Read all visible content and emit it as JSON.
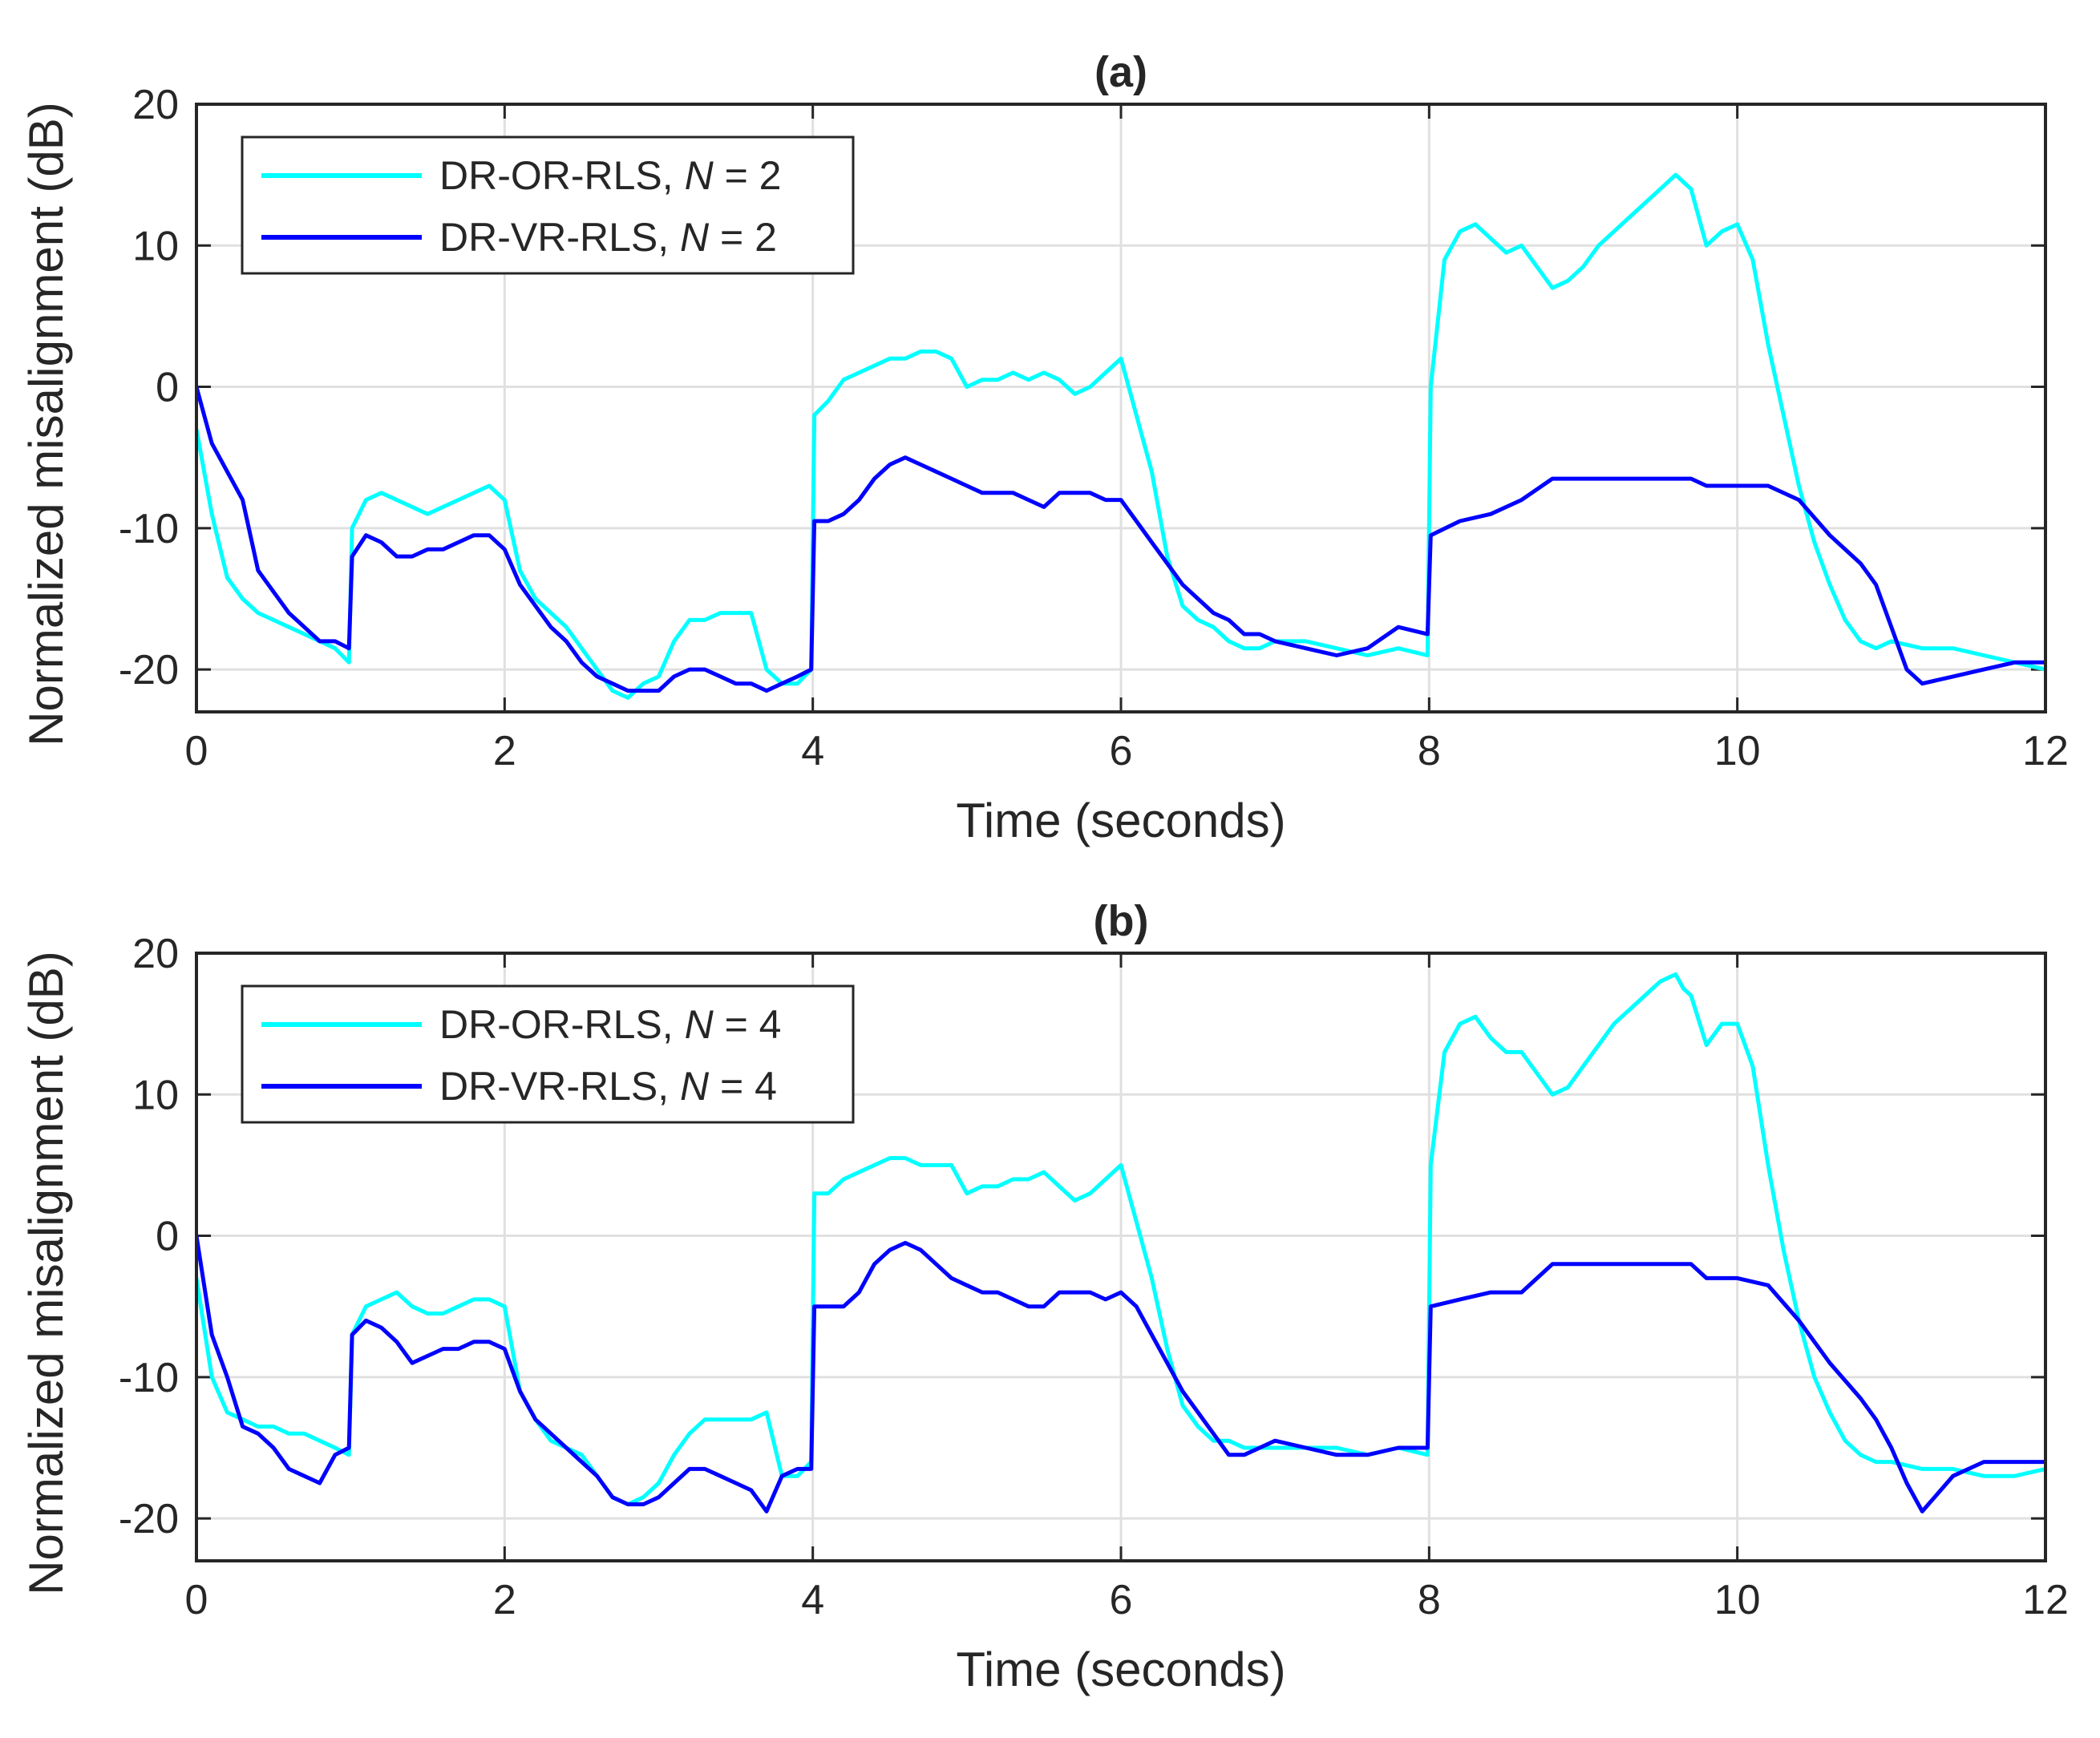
{
  "chart_data": [
    {
      "type": "line",
      "title": "(a)",
      "xlabel": "Time (seconds)",
      "ylabel": "Normalized misalignment (dB)",
      "xlim": [
        0,
        12
      ],
      "ylim": [
        -23,
        20
      ],
      "xticks": [
        "0",
        "2",
        "4",
        "6",
        "8",
        "10",
        "12"
      ],
      "yticks": [
        "-20",
        "-10",
        "0",
        "10",
        "20"
      ],
      "grid": true,
      "legend_position": "top-left",
      "series": [
        {
          "name": "DR-OR-RLS",
          "N_label": "N",
          "N_value": "= 2",
          "color": "#00ffff",
          "x": [
            0,
            0.1,
            0.2,
            0.3,
            0.4,
            0.5,
            0.6,
            0.7,
            0.8,
            0.9,
            0.99,
            1.01,
            1.1,
            1.2,
            1.3,
            1.4,
            1.5,
            1.6,
            1.7,
            1.8,
            1.9,
            2.0,
            2.1,
            2.2,
            2.3,
            2.4,
            2.5,
            2.6,
            2.7,
            2.8,
            2.9,
            3.0,
            3.1,
            3.2,
            3.3,
            3.4,
            3.5,
            3.6,
            3.7,
            3.8,
            3.9,
            3.99,
            4.01,
            4.1,
            4.2,
            4.3,
            4.4,
            4.5,
            4.6,
            4.7,
            4.8,
            4.9,
            5.0,
            5.1,
            5.2,
            5.3,
            5.4,
            5.5,
            5.6,
            5.7,
            5.8,
            5.9,
            6.0,
            6.1,
            6.2,
            6.3,
            6.4,
            6.5,
            6.6,
            6.7,
            6.8,
            6.9,
            7.0,
            7.2,
            7.4,
            7.6,
            7.8,
            7.99,
            8.01,
            8.1,
            8.2,
            8.3,
            8.4,
            8.5,
            8.6,
            8.7,
            8.8,
            8.9,
            9.0,
            9.1,
            9.2,
            9.3,
            9.4,
            9.5,
            9.6,
            9.65,
            9.7,
            9.8,
            9.9,
            10.0,
            10.1,
            10.2,
            10.3,
            10.4,
            10.5,
            10.6,
            10.7,
            10.8,
            10.9,
            11.0,
            11.2,
            11.4,
            11.6,
            11.8,
            12.0
          ],
          "y": [
            -3,
            -9,
            -13.5,
            -15,
            -16,
            -16.5,
            -17,
            -17.5,
            -18,
            -18.5,
            -19.5,
            -10,
            -8,
            -7.5,
            -8,
            -8.5,
            -9,
            -8.5,
            -8,
            -7.5,
            -7,
            -8,
            -13,
            -15,
            -16,
            -17,
            -18.5,
            -20,
            -21.5,
            -22,
            -21,
            -20.5,
            -18,
            -16.5,
            -16.5,
            -16,
            -16,
            -16,
            -20,
            -21,
            -21,
            -20,
            -2,
            -1,
            0.5,
            1,
            1.5,
            2,
            2,
            2.5,
            2.5,
            2,
            0,
            0.5,
            0.5,
            1,
            0.5,
            1,
            0.5,
            -0.5,
            0,
            1,
            2,
            -2,
            -6,
            -12,
            -15.5,
            -16.5,
            -17,
            -18,
            -18.5,
            -18.5,
            -18,
            -18,
            -18.5,
            -19,
            -18.5,
            -19,
            0,
            9,
            11,
            11.5,
            10.5,
            9.5,
            10,
            8.5,
            7,
            7.5,
            8.5,
            10,
            11,
            12,
            13,
            14,
            15,
            14.5,
            14,
            10,
            11,
            11.5,
            9,
            3,
            -2,
            -7,
            -11,
            -14,
            -16.5,
            -18,
            -18.5,
            -18,
            -18.5,
            -18.5,
            -19,
            -19.5,
            -20
          ]
        },
        {
          "name": "DR-VR-RLS",
          "N_label": "N",
          "N_value": "= 2",
          "color": "#0000ff",
          "x": [
            0,
            0.1,
            0.2,
            0.3,
            0.4,
            0.5,
            0.6,
            0.7,
            0.8,
            0.9,
            0.99,
            1.01,
            1.1,
            1.2,
            1.3,
            1.4,
            1.5,
            1.6,
            1.7,
            1.8,
            1.9,
            2.0,
            2.1,
            2.2,
            2.3,
            2.4,
            2.5,
            2.6,
            2.7,
            2.8,
            2.9,
            3.0,
            3.1,
            3.2,
            3.3,
            3.4,
            3.5,
            3.6,
            3.7,
            3.8,
            3.9,
            3.99,
            4.01,
            4.1,
            4.2,
            4.3,
            4.4,
            4.5,
            4.6,
            4.7,
            4.8,
            4.9,
            5.0,
            5.1,
            5.2,
            5.3,
            5.4,
            5.5,
            5.6,
            5.7,
            5.8,
            5.9,
            6.0,
            6.1,
            6.2,
            6.3,
            6.4,
            6.5,
            6.6,
            6.7,
            6.8,
            6.9,
            7.0,
            7.2,
            7.4,
            7.6,
            7.8,
            7.99,
            8.01,
            8.2,
            8.4,
            8.6,
            8.8,
            9.0,
            9.2,
            9.4,
            9.6,
            9.7,
            9.8,
            10.0,
            10.2,
            10.4,
            10.6,
            10.8,
            10.9,
            11.0,
            11.1,
            11.2,
            11.4,
            11.6,
            11.8,
            12.0
          ],
          "y": [
            0,
            -4,
            -6,
            -8,
            -13,
            -14.5,
            -16,
            -17,
            -18,
            -18,
            -18.5,
            -12,
            -10.5,
            -11,
            -12,
            -12,
            -11.5,
            -11.5,
            -11,
            -10.5,
            -10.5,
            -11.5,
            -14,
            -15.5,
            -17,
            -18,
            -19.5,
            -20.5,
            -21,
            -21.5,
            -21.5,
            -21.5,
            -20.5,
            -20,
            -20,
            -20.5,
            -21,
            -21,
            -21.5,
            -21,
            -20.5,
            -20,
            -9.5,
            -9.5,
            -9,
            -8,
            -6.5,
            -5.5,
            -5,
            -5.5,
            -6,
            -6.5,
            -7,
            -7.5,
            -7.5,
            -7.5,
            -8,
            -8.5,
            -7.5,
            -7.5,
            -7.5,
            -8,
            -8,
            -9.5,
            -11,
            -12.5,
            -14,
            -15,
            -16,
            -16.5,
            -17.5,
            -17.5,
            -18,
            -18.5,
            -19,
            -18.5,
            -17,
            -17.5,
            -10.5,
            -9.5,
            -9,
            -8,
            -6.5,
            -6.5,
            -6.5,
            -6.5,
            -6.5,
            -6.5,
            -7,
            -7,
            -7,
            -8,
            -10.5,
            -12.5,
            -14,
            -17,
            -20,
            -21,
            -20.5,
            -20,
            -19.5,
            -19.5
          ]
        }
      ]
    },
    {
      "type": "line",
      "title": "(b)",
      "xlabel": "Time (seconds)",
      "ylabel": "Normalized misalignment (dB)",
      "xlim": [
        0,
        12
      ],
      "ylim": [
        -23,
        20
      ],
      "xticks": [
        "0",
        "2",
        "4",
        "6",
        "8",
        "10",
        "12"
      ],
      "yticks": [
        "-20",
        "-10",
        "0",
        "10",
        "20"
      ],
      "grid": true,
      "legend_position": "top-left",
      "series": [
        {
          "name": "DR-OR-RLS",
          "N_label": "N",
          "N_value": "= 4",
          "color": "#00ffff",
          "x": [
            0,
            0.1,
            0.2,
            0.3,
            0.4,
            0.5,
            0.6,
            0.7,
            0.8,
            0.9,
            0.99,
            1.01,
            1.1,
            1.2,
            1.3,
            1.4,
            1.5,
            1.6,
            1.7,
            1.8,
            1.9,
            2.0,
            2.1,
            2.2,
            2.3,
            2.4,
            2.5,
            2.6,
            2.7,
            2.8,
            2.9,
            3.0,
            3.1,
            3.2,
            3.3,
            3.4,
            3.5,
            3.6,
            3.7,
            3.8,
            3.9,
            3.99,
            4.01,
            4.1,
            4.2,
            4.3,
            4.4,
            4.5,
            4.6,
            4.7,
            4.8,
            4.9,
            5.0,
            5.1,
            5.2,
            5.3,
            5.4,
            5.5,
            5.6,
            5.7,
            5.8,
            5.9,
            6.0,
            6.1,
            6.2,
            6.3,
            6.4,
            6.5,
            6.6,
            6.7,
            6.8,
            6.9,
            7.0,
            7.2,
            7.4,
            7.6,
            7.8,
            7.99,
            8.01,
            8.1,
            8.2,
            8.3,
            8.4,
            8.5,
            8.6,
            8.7,
            8.8,
            8.9,
            9.0,
            9.1,
            9.2,
            9.3,
            9.4,
            9.5,
            9.6,
            9.65,
            9.7,
            9.8,
            9.9,
            10.0,
            10.1,
            10.2,
            10.3,
            10.4,
            10.5,
            10.6,
            10.7,
            10.8,
            10.9,
            11.0,
            11.2,
            11.4,
            11.6,
            11.8,
            12.0
          ],
          "y": [
            -3,
            -10,
            -12.5,
            -13,
            -13.5,
            -13.5,
            -14,
            -14,
            -14.5,
            -15,
            -15.5,
            -7,
            -5,
            -4.5,
            -4,
            -5,
            -5.5,
            -5.5,
            -5,
            -4.5,
            -4.5,
            -5,
            -11,
            -13,
            -14.5,
            -15,
            -15.5,
            -17,
            -18.5,
            -19,
            -18.5,
            -17.5,
            -15.5,
            -14,
            -13,
            -13,
            -13,
            -13,
            -12.5,
            -17,
            -17,
            -16,
            3,
            3,
            4,
            4.5,
            5,
            5.5,
            5.5,
            5,
            5,
            5,
            3,
            3.5,
            3.5,
            4,
            4,
            4.5,
            3.5,
            2.5,
            3,
            4,
            5,
            1,
            -3,
            -8,
            -12,
            -13.5,
            -14.5,
            -14.5,
            -15,
            -15,
            -15,
            -15,
            -15,
            -15.5,
            -15,
            -15.5,
            5,
            13,
            15,
            15.5,
            14,
            13,
            13,
            11.5,
            10,
            10.5,
            12,
            13.5,
            15,
            16,
            17,
            18,
            18.5,
            17.5,
            17,
            13.5,
            15,
            15,
            12,
            5,
            -1,
            -6,
            -10,
            -12.5,
            -14.5,
            -15.5,
            -16,
            -16,
            -16.5,
            -16.5,
            -17,
            -17,
            -16.5
          ]
        },
        {
          "name": "DR-VR-RLS",
          "N_label": "N",
          "N_value": "= 4",
          "color": "#0000ff",
          "x": [
            0,
            0.1,
            0.2,
            0.3,
            0.4,
            0.5,
            0.6,
            0.7,
            0.8,
            0.9,
            0.99,
            1.01,
            1.1,
            1.2,
            1.3,
            1.4,
            1.5,
            1.6,
            1.7,
            1.8,
            1.9,
            2.0,
            2.1,
            2.2,
            2.3,
            2.4,
            2.5,
            2.6,
            2.7,
            2.8,
            2.9,
            3.0,
            3.1,
            3.2,
            3.3,
            3.4,
            3.5,
            3.6,
            3.7,
            3.8,
            3.9,
            3.99,
            4.01,
            4.1,
            4.2,
            4.3,
            4.4,
            4.5,
            4.6,
            4.7,
            4.8,
            4.9,
            5.0,
            5.1,
            5.2,
            5.3,
            5.4,
            5.5,
            5.6,
            5.7,
            5.8,
            5.9,
            6.0,
            6.1,
            6.2,
            6.3,
            6.4,
            6.5,
            6.6,
            6.7,
            6.8,
            6.9,
            7.0,
            7.2,
            7.4,
            7.6,
            7.8,
            7.99,
            8.01,
            8.2,
            8.4,
            8.6,
            8.8,
            9.0,
            9.2,
            9.4,
            9.6,
            9.7,
            9.8,
            10.0,
            10.2,
            10.4,
            10.6,
            10.8,
            10.9,
            11.0,
            11.1,
            11.2,
            11.4,
            11.6,
            11.8,
            12.0
          ],
          "y": [
            0,
            -7,
            -10,
            -13.5,
            -14,
            -15,
            -16.5,
            -17,
            -17.5,
            -15.5,
            -15,
            -7,
            -6,
            -6.5,
            -7.5,
            -9,
            -8.5,
            -8,
            -8,
            -7.5,
            -7.5,
            -8,
            -11,
            -13,
            -14,
            -15,
            -16,
            -17,
            -18.5,
            -19,
            -19,
            -18.5,
            -17.5,
            -16.5,
            -16.5,
            -17,
            -17.5,
            -18,
            -19.5,
            -17,
            -16.5,
            -16.5,
            -5,
            -5,
            -5,
            -4,
            -2,
            -1,
            -0.5,
            -1,
            -2,
            -3,
            -3.5,
            -4,
            -4,
            -4.5,
            -5,
            -5,
            -4,
            -4,
            -4,
            -4.5,
            -4,
            -5,
            -7,
            -9,
            -11,
            -12.5,
            -14,
            -15.5,
            -15.5,
            -15,
            -14.5,
            -15,
            -15.5,
            -15.5,
            -15,
            -15,
            -5,
            -4.5,
            -4,
            -4,
            -2,
            -2,
            -2,
            -2,
            -2,
            -2,
            -3,
            -3,
            -3.5,
            -6,
            -9,
            -11.5,
            -13,
            -15,
            -17.5,
            -19.5,
            -17,
            -16,
            -16,
            -16
          ]
        }
      ]
    }
  ]
}
